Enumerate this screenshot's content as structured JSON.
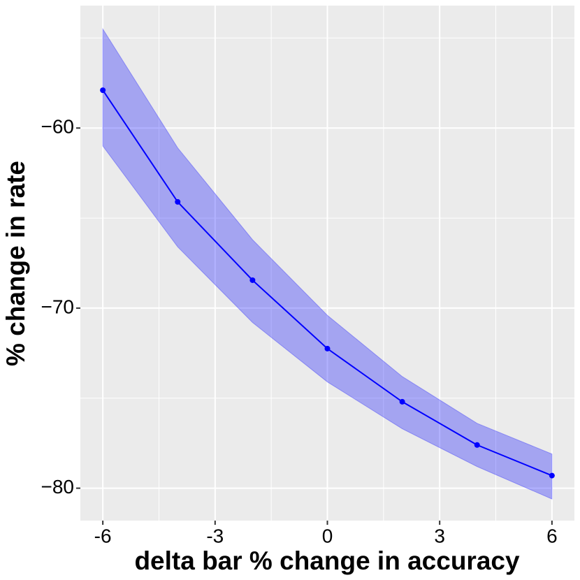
{
  "chart_data": {
    "type": "line",
    "xlabel": "delta bar % change in accuracy",
    "ylabel": "% change in rate",
    "x": [
      -6,
      -4,
      -2,
      0,
      2,
      4,
      6
    ],
    "series": [
      {
        "color": "#0000ff",
        "values": [
          -57.9,
          -64.1,
          -68.45,
          -72.25,
          -75.2,
          -77.6,
          -79.3
        ],
        "upper": [
          -54.5,
          -61.1,
          -66.2,
          -70.4,
          -73.8,
          -76.4,
          -78.1
        ],
        "lower": [
          -61.0,
          -66.6,
          -70.8,
          -74.1,
          -76.7,
          -78.8,
          -80.6
        ]
      }
    ],
    "xlim": [
      -6.6,
      6.6
    ],
    "xticks": [
      -6,
      -3,
      0,
      3,
      6
    ],
    "ylim": [
      -81.8,
      -53.2
    ],
    "yticks": [
      {
        "value": -60,
        "label": "−60"
      },
      {
        "value": -70,
        "label": "−70"
      },
      {
        "value": -80,
        "label": "−80"
      }
    ],
    "grid": true
  }
}
